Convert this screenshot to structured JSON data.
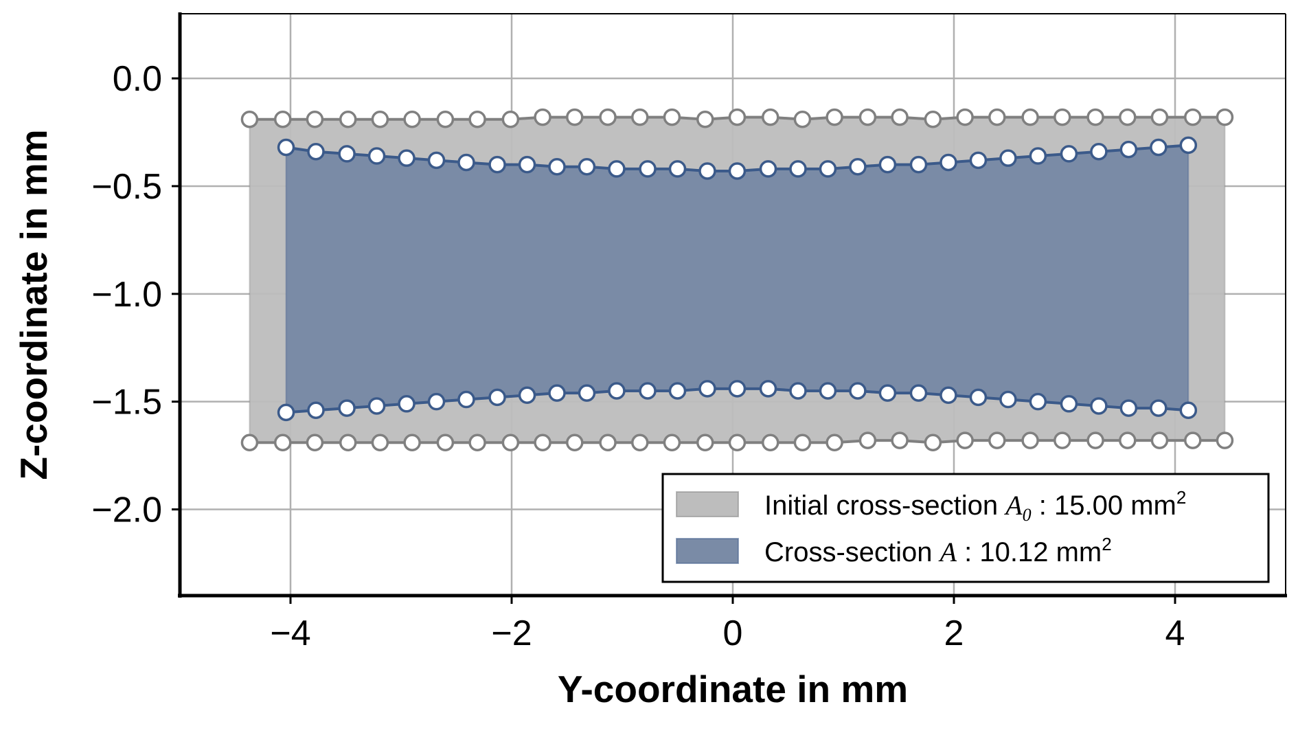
{
  "chart_data": {
    "type": "area",
    "xlabel": "Y-coordinate in mm",
    "ylabel": "Z-coordinate in mm",
    "xlim": [
      -5.0,
      5.0
    ],
    "ylim": [
      -2.4,
      0.3
    ],
    "xticks": [
      -4,
      -2,
      0,
      2,
      4
    ],
    "xtick_labels": [
      "−4",
      "−2",
      "0",
      "2",
      "4"
    ],
    "yticks": [
      0.0,
      -0.5,
      -1.0,
      -1.5,
      -2.0
    ],
    "ytick_labels": [
      "0.0",
      "−0.5",
      "−1.0",
      "−1.5",
      "−2.0"
    ],
    "grid": true,
    "legend_position": "lower-right",
    "series": [
      {
        "name": "Initial cross-section A0 : 15.00 mm2",
        "legend": {
          "prefix": "Initial cross-section ",
          "symbol": "A",
          "subscript": "0",
          "suffix": " : 15.00 mm",
          "sup": "2"
        },
        "fill_color": "#bdbdbd",
        "line_color": "#808080",
        "marker_face": "#ffffff",
        "upper_x": [
          -4.37,
          -4.07,
          -3.78,
          -3.48,
          -3.19,
          -2.9,
          -2.6,
          -2.31,
          -2.01,
          -1.72,
          -1.43,
          -1.13,
          -0.84,
          -0.55,
          -0.25,
          0.04,
          0.34,
          0.63,
          0.92,
          1.22,
          1.51,
          1.81,
          2.1,
          2.39,
          2.69,
          2.98,
          3.28,
          3.57,
          3.86,
          4.16,
          4.45
        ],
        "upper_y": [
          -0.19,
          -0.19,
          -0.19,
          -0.19,
          -0.19,
          -0.19,
          -0.19,
          -0.19,
          -0.19,
          -0.18,
          -0.18,
          -0.18,
          -0.18,
          -0.18,
          -0.19,
          -0.18,
          -0.18,
          -0.19,
          -0.18,
          -0.18,
          -0.18,
          -0.19,
          -0.18,
          -0.18,
          -0.18,
          -0.18,
          -0.18,
          -0.18,
          -0.18,
          -0.18,
          -0.18
        ],
        "lower_x": [
          -4.37,
          -4.07,
          -3.78,
          -3.48,
          -3.19,
          -2.9,
          -2.6,
          -2.31,
          -2.01,
          -1.72,
          -1.43,
          -1.13,
          -0.84,
          -0.55,
          -0.25,
          0.04,
          0.34,
          0.63,
          0.92,
          1.22,
          1.51,
          1.81,
          2.1,
          2.39,
          2.69,
          2.98,
          3.28,
          3.57,
          3.86,
          4.16,
          4.45
        ],
        "lower_y": [
          -1.69,
          -1.69,
          -1.69,
          -1.69,
          -1.69,
          -1.69,
          -1.69,
          -1.69,
          -1.69,
          -1.69,
          -1.69,
          -1.69,
          -1.69,
          -1.69,
          -1.69,
          -1.69,
          -1.69,
          -1.69,
          -1.69,
          -1.68,
          -1.68,
          -1.69,
          -1.68,
          -1.68,
          -1.68,
          -1.68,
          -1.68,
          -1.68,
          -1.68,
          -1.68,
          -1.68
        ]
      },
      {
        "name": "Cross-section A : 10.12 mm2",
        "legend": {
          "prefix": "Cross-section ",
          "symbol": "A",
          "subscript": "",
          "suffix": " : 10.12 mm",
          "sup": "2"
        },
        "fill_color": "#7a8ba6",
        "line_color": "#3b5a8a",
        "marker_face": "#ffffff",
        "upper_x": [
          -4.04,
          -3.77,
          -3.49,
          -3.22,
          -2.95,
          -2.68,
          -2.41,
          -2.13,
          -1.86,
          -1.59,
          -1.32,
          -1.05,
          -0.77,
          -0.5,
          -0.23,
          0.04,
          0.32,
          0.59,
          0.86,
          1.13,
          1.4,
          1.68,
          1.95,
          2.22,
          2.49,
          2.76,
          3.04,
          3.31,
          3.58,
          3.85,
          4.12
        ],
        "upper_y": [
          -0.32,
          -0.34,
          -0.35,
          -0.36,
          -0.37,
          -0.38,
          -0.39,
          -0.4,
          -0.4,
          -0.41,
          -0.41,
          -0.42,
          -0.42,
          -0.42,
          -0.43,
          -0.43,
          -0.42,
          -0.42,
          -0.42,
          -0.41,
          -0.4,
          -0.4,
          -0.39,
          -0.38,
          -0.37,
          -0.36,
          -0.35,
          -0.34,
          -0.33,
          -0.32,
          -0.31
        ],
        "lower_x": [
          -4.04,
          -3.77,
          -3.49,
          -3.22,
          -2.95,
          -2.68,
          -2.41,
          -2.13,
          -1.86,
          -1.59,
          -1.32,
          -1.05,
          -0.77,
          -0.5,
          -0.23,
          0.04,
          0.32,
          0.59,
          0.86,
          1.13,
          1.4,
          1.68,
          1.95,
          2.22,
          2.49,
          2.76,
          3.04,
          3.31,
          3.58,
          3.85,
          4.12
        ],
        "lower_y": [
          -1.55,
          -1.54,
          -1.53,
          -1.52,
          -1.51,
          -1.5,
          -1.49,
          -1.48,
          -1.47,
          -1.46,
          -1.46,
          -1.45,
          -1.45,
          -1.45,
          -1.44,
          -1.44,
          -1.44,
          -1.45,
          -1.45,
          -1.45,
          -1.46,
          -1.46,
          -1.47,
          -1.48,
          -1.49,
          -1.5,
          -1.51,
          -1.52,
          -1.53,
          -1.53,
          -1.54
        ]
      }
    ]
  }
}
